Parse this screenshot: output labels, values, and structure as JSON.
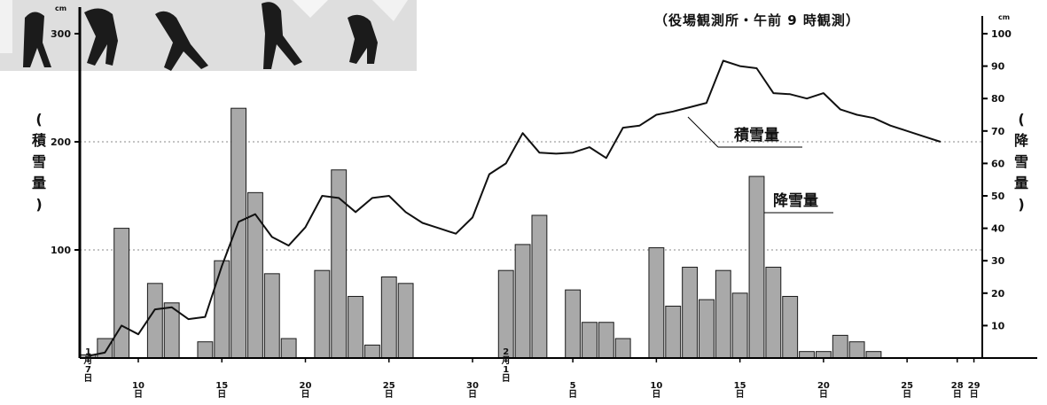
{
  "header": {
    "title_fragment": "",
    "subtitle": "（役場観測所・午前 9 時観測）"
  },
  "photo": {
    "icon": "skiers-photo"
  },
  "colors": {
    "bar": "#a9a9a9",
    "bar_stroke": "#1a1a1a",
    "line": "#111111",
    "grid": "#888888"
  },
  "chart_data": {
    "type": "bar+line",
    "left_axis": {
      "label": [
        "(",
        "積",
        "雪",
        "量",
        ")"
      ],
      "unit": "cm",
      "ticks": [
        "100",
        "200",
        "300"
      ],
      "range": [
        0,
        300
      ]
    },
    "right_axis": {
      "label": [
        "(",
        "降",
        "雪",
        "量",
        ")"
      ],
      "unit": "cm",
      "ticks": [
        "10",
        "20",
        "30",
        "40",
        "50",
        "60",
        "70",
        "80",
        "90",
        "100"
      ],
      "range": [
        0,
        100
      ]
    },
    "x_ticks": [
      {
        "index": 0,
        "lines": [
          "1",
          "月",
          "7",
          "日"
        ]
      },
      {
        "index": 3,
        "lines": [
          "10",
          "日"
        ]
      },
      {
        "index": 8,
        "lines": [
          "15",
          "日"
        ]
      },
      {
        "index": 13,
        "lines": [
          "20",
          "日"
        ]
      },
      {
        "index": 18,
        "lines": [
          "25",
          "日"
        ]
      },
      {
        "index": 23,
        "lines": [
          "30",
          "日"
        ]
      },
      {
        "index": 25,
        "lines": [
          "2",
          "月",
          "1",
          "日"
        ]
      },
      {
        "index": 29,
        "lines": [
          "5",
          "日"
        ]
      },
      {
        "index": 34,
        "lines": [
          "10",
          "日"
        ]
      },
      {
        "index": 39,
        "lines": [
          "15",
          "日"
        ]
      },
      {
        "index": 44,
        "lines": [
          "20",
          "日"
        ]
      },
      {
        "index": 49,
        "lines": [
          "25",
          "日"
        ]
      },
      {
        "index": 52,
        "lines": [
          "28",
          "日"
        ]
      },
      {
        "index": 53,
        "lines": [
          "29",
          "日"
        ]
      }
    ],
    "series": [
      {
        "name": "降雪量",
        "axis": "right",
        "kind": "bar",
        "values": [
          1,
          6,
          40,
          0,
          23,
          17,
          0,
          5,
          30,
          77,
          51,
          26,
          6,
          0,
          27,
          58,
          19,
          4,
          25,
          23,
          0,
          0,
          0,
          0,
          0,
          27,
          35,
          44,
          0,
          21,
          11,
          11,
          6,
          0,
          34,
          16,
          28,
          18,
          27,
          20,
          56,
          28,
          19,
          2,
          2,
          7,
          5,
          2,
          0,
          0,
          0,
          0,
          0,
          0
        ]
      },
      {
        "name": "積雪量",
        "axis": "left",
        "kind": "line",
        "values": [
          2,
          5,
          30,
          22,
          45,
          47,
          36,
          38,
          85,
          126,
          133,
          112,
          104,
          121,
          150,
          148,
          135,
          148,
          150,
          135,
          125,
          120,
          115,
          130,
          170,
          180,
          208,
          190,
          189,
          190,
          195,
          185,
          213,
          215,
          225,
          228,
          232,
          236,
          275,
          270,
          268,
          245,
          244,
          240,
          245,
          230,
          225,
          222,
          215,
          210,
          205,
          200
        ]
      }
    ]
  }
}
